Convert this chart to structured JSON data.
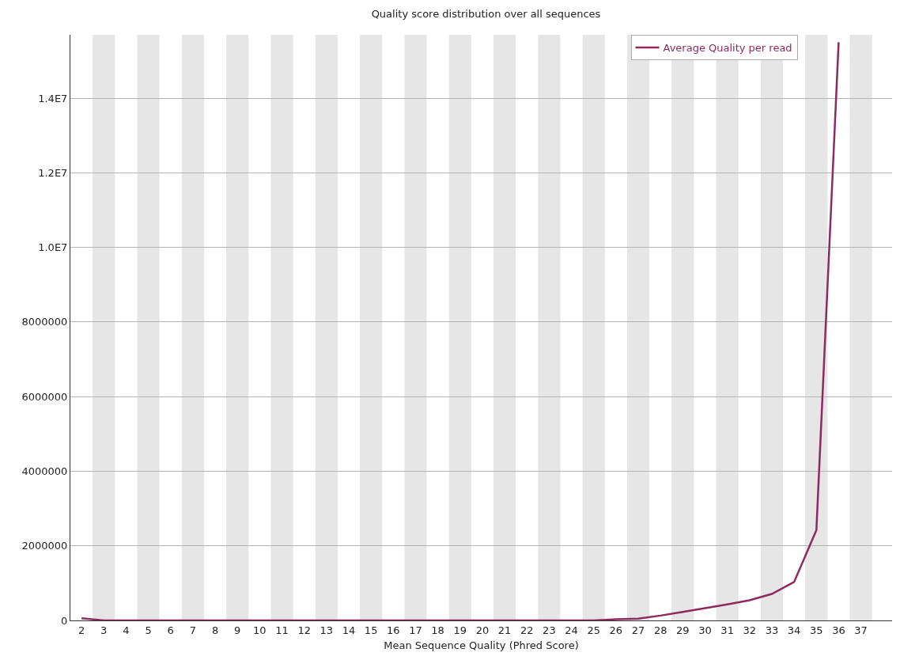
{
  "chart_data": {
    "type": "line",
    "title": "Quality score distribution over all sequences",
    "xlabel": "Mean Sequence Quality (Phred Score)",
    "x": [
      2,
      3,
      4,
      5,
      6,
      7,
      8,
      9,
      10,
      11,
      12,
      13,
      14,
      15,
      16,
      17,
      18,
      19,
      20,
      21,
      22,
      23,
      24,
      25,
      26,
      27,
      28,
      29,
      30,
      31,
      32,
      33,
      34,
      35,
      36
    ],
    "series": [
      {
        "name": "Average Quality per read",
        "color": "#8e2a5e",
        "values": [
          60000,
          0,
          0,
          0,
          0,
          0,
          0,
          0,
          0,
          0,
          0,
          0,
          0,
          0,
          0,
          0,
          0,
          0,
          0,
          0,
          0,
          0,
          0,
          0,
          30000,
          50000,
          130000,
          230000,
          330000,
          430000,
          540000,
          710000,
          1030000,
          2420000,
          15500000
        ]
      }
    ],
    "xlim": [
      1.5,
      38.4
    ],
    "xticks": [
      2,
      3,
      4,
      5,
      6,
      7,
      8,
      9,
      10,
      11,
      12,
      13,
      14,
      15,
      16,
      17,
      18,
      19,
      20,
      21,
      22,
      23,
      24,
      25,
      26,
      27,
      28,
      29,
      30,
      31,
      32,
      33,
      34,
      35,
      36,
      37
    ],
    "ylim": [
      0,
      15700000
    ],
    "yticks": [
      0,
      2000000,
      4000000,
      6000000,
      8000000,
      {
        "value": 10000000,
        "label": "1.0E7"
      },
      {
        "value": 12000000,
        "label": "1.2E7"
      },
      {
        "value": 14000000,
        "label": "1.4E7"
      }
    ],
    "bands": [
      {
        "axis": "x",
        "from": 2.5,
        "to": 3.5,
        "color": "#e6e6e6"
      },
      {
        "axis": "x",
        "from": 4.5,
        "to": 5.5,
        "color": "#e6e6e6"
      },
      {
        "axis": "x",
        "from": 6.5,
        "to": 7.5,
        "color": "#e6e6e6"
      },
      {
        "axis": "x",
        "from": 8.5,
        "to": 9.5,
        "color": "#e6e6e6"
      },
      {
        "axis": "x",
        "from": 10.5,
        "to": 11.5,
        "color": "#e6e6e6"
      },
      {
        "axis": "x",
        "from": 12.5,
        "to": 13.5,
        "color": "#e6e6e6"
      },
      {
        "axis": "x",
        "from": 14.5,
        "to": 15.5,
        "color": "#e6e6e6"
      },
      {
        "axis": "x",
        "from": 16.5,
        "to": 17.5,
        "color": "#e6e6e6"
      },
      {
        "axis": "x",
        "from": 18.5,
        "to": 19.5,
        "color": "#e6e6e6"
      },
      {
        "axis": "x",
        "from": 20.5,
        "to": 21.5,
        "color": "#e6e6e6"
      },
      {
        "axis": "x",
        "from": 22.5,
        "to": 23.5,
        "color": "#e6e6e6"
      },
      {
        "axis": "x",
        "from": 24.5,
        "to": 25.5,
        "color": "#e6e6e6"
      },
      {
        "axis": "x",
        "from": 26.5,
        "to": 27.5,
        "color": "#e6e6e6"
      },
      {
        "axis": "x",
        "from": 28.5,
        "to": 29.5,
        "color": "#e6e6e6"
      },
      {
        "axis": "x",
        "from": 30.5,
        "to": 31.5,
        "color": "#e6e6e6"
      },
      {
        "axis": "x",
        "from": 32.5,
        "to": 33.5,
        "color": "#e6e6e6"
      },
      {
        "axis": "x",
        "from": 34.5,
        "to": 35.5,
        "color": "#e6e6e6"
      },
      {
        "axis": "x",
        "from": 36.5,
        "to": 37.5,
        "color": "#e6e6e6"
      }
    ],
    "grid": "y",
    "legend": "top right",
    "marker": "none",
    "line_style": "solid"
  }
}
